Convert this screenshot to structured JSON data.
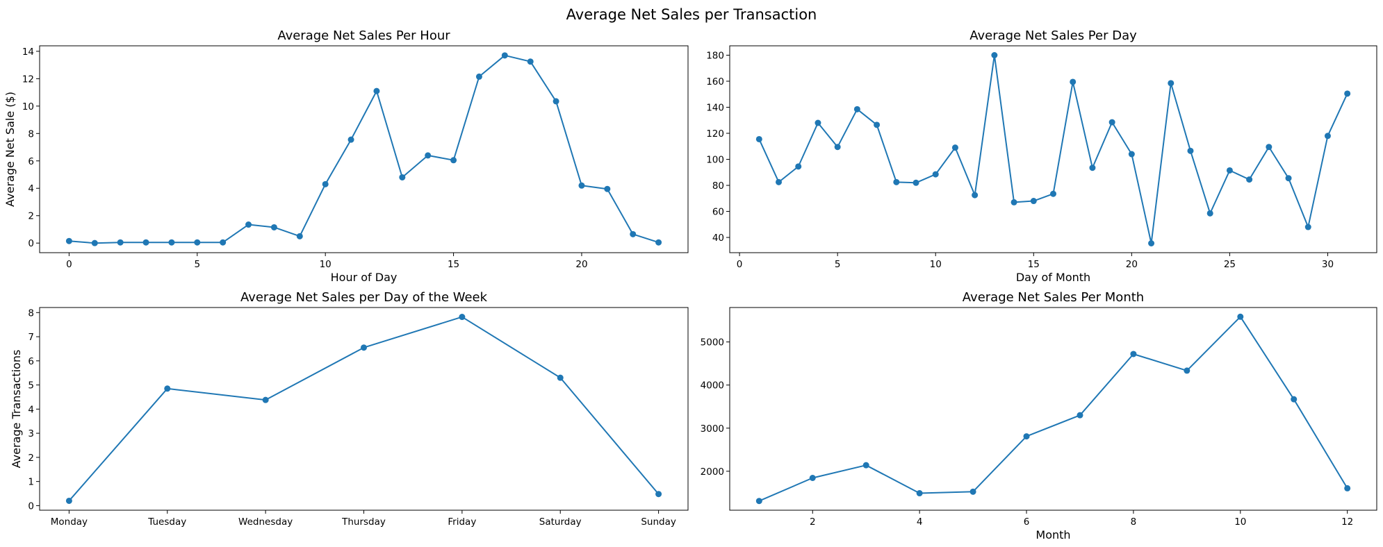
{
  "figure": {
    "title": "Average Net Sales per Transaction",
    "line_color": "#1f77b4"
  },
  "chart_data": [
    {
      "type": "line",
      "title": "Average Net Sales Per Hour",
      "xlabel": "Hour of Day",
      "ylabel": "Average Net Sale ($)",
      "x": [
        0,
        1,
        2,
        3,
        4,
        5,
        6,
        7,
        8,
        9,
        10,
        11,
        12,
        13,
        14,
        15,
        16,
        17,
        18,
        19,
        20,
        21,
        22,
        23
      ],
      "y": [
        0.15,
        0.0,
        0.05,
        0.05,
        0.05,
        0.05,
        0.05,
        1.35,
        1.15,
        0.5,
        4.3,
        7.55,
        11.1,
        4.8,
        6.4,
        6.05,
        12.15,
        13.7,
        13.25,
        10.35,
        4.2,
        3.95,
        0.65,
        0.05
      ],
      "xlim": [
        -1.15,
        24.15
      ],
      "ylim": [
        -0.7,
        14.4
      ],
      "xticks": [
        0,
        5,
        10,
        15,
        20
      ],
      "yticks": [
        0,
        2,
        4,
        6,
        8,
        10,
        12,
        14
      ],
      "marker": "circle",
      "grid": false
    },
    {
      "type": "line",
      "title": "Average Net Sales Per Day",
      "xlabel": "Day of Month",
      "ylabel": "",
      "x": [
        1,
        2,
        3,
        4,
        5,
        6,
        7,
        8,
        9,
        10,
        11,
        12,
        13,
        14,
        15,
        16,
        17,
        18,
        19,
        20,
        21,
        22,
        23,
        24,
        25,
        26,
        27,
        28,
        29,
        30,
        31
      ],
      "y": [
        115.5,
        82.5,
        94.5,
        128,
        109.5,
        138.5,
        126.5,
        82.5,
        82,
        88.5,
        109,
        72.5,
        180,
        67,
        68,
        73.5,
        159.5,
        93.5,
        128.5,
        104,
        35.5,
        158.5,
        106.5,
        58.5,
        91.5,
        84.5,
        109.5,
        85.5,
        48,
        118,
        150.5
      ],
      "xlim": [
        -0.5,
        32.5
      ],
      "ylim": [
        28.3,
        187.2
      ],
      "xticks": [
        0,
        5,
        10,
        15,
        20,
        25,
        30
      ],
      "yticks": [
        40,
        60,
        80,
        100,
        120,
        140,
        160,
        180
      ],
      "marker": "circle",
      "grid": false
    },
    {
      "type": "line",
      "title": "Average Net Sales per Day of the Week",
      "xlabel": "",
      "ylabel": "Average Transactions",
      "categories": [
        "Monday",
        "Tuesday",
        "Wednesday",
        "Thursday",
        "Friday",
        "Saturday",
        "Sunday"
      ],
      "values": [
        0.2,
        4.85,
        4.38,
        6.55,
        7.82,
        5.3,
        0.48
      ],
      "xlim": [
        -0.3,
        6.3
      ],
      "ylim": [
        -0.19,
        8.21
      ],
      "yticks": [
        0,
        1,
        2,
        3,
        4,
        5,
        6,
        7,
        8
      ],
      "marker": "circle",
      "grid": false
    },
    {
      "type": "line",
      "title": "Average Net Sales Per Month",
      "xlabel": "Month",
      "ylabel": "",
      "x": [
        1,
        2,
        3,
        4,
        5,
        6,
        7,
        8,
        9,
        10,
        11,
        12
      ],
      "y": [
        1310,
        1845,
        2140,
        1490,
        1525,
        2810,
        3300,
        4720,
        4335,
        5585,
        3670,
        1605
      ],
      "xlim": [
        0.45,
        12.55
      ],
      "ylim": [
        1096,
        5799
      ],
      "xticks": [
        2,
        4,
        6,
        8,
        10,
        12
      ],
      "yticks": [
        2000,
        3000,
        4000,
        5000
      ],
      "marker": "circle",
      "grid": false
    }
  ]
}
